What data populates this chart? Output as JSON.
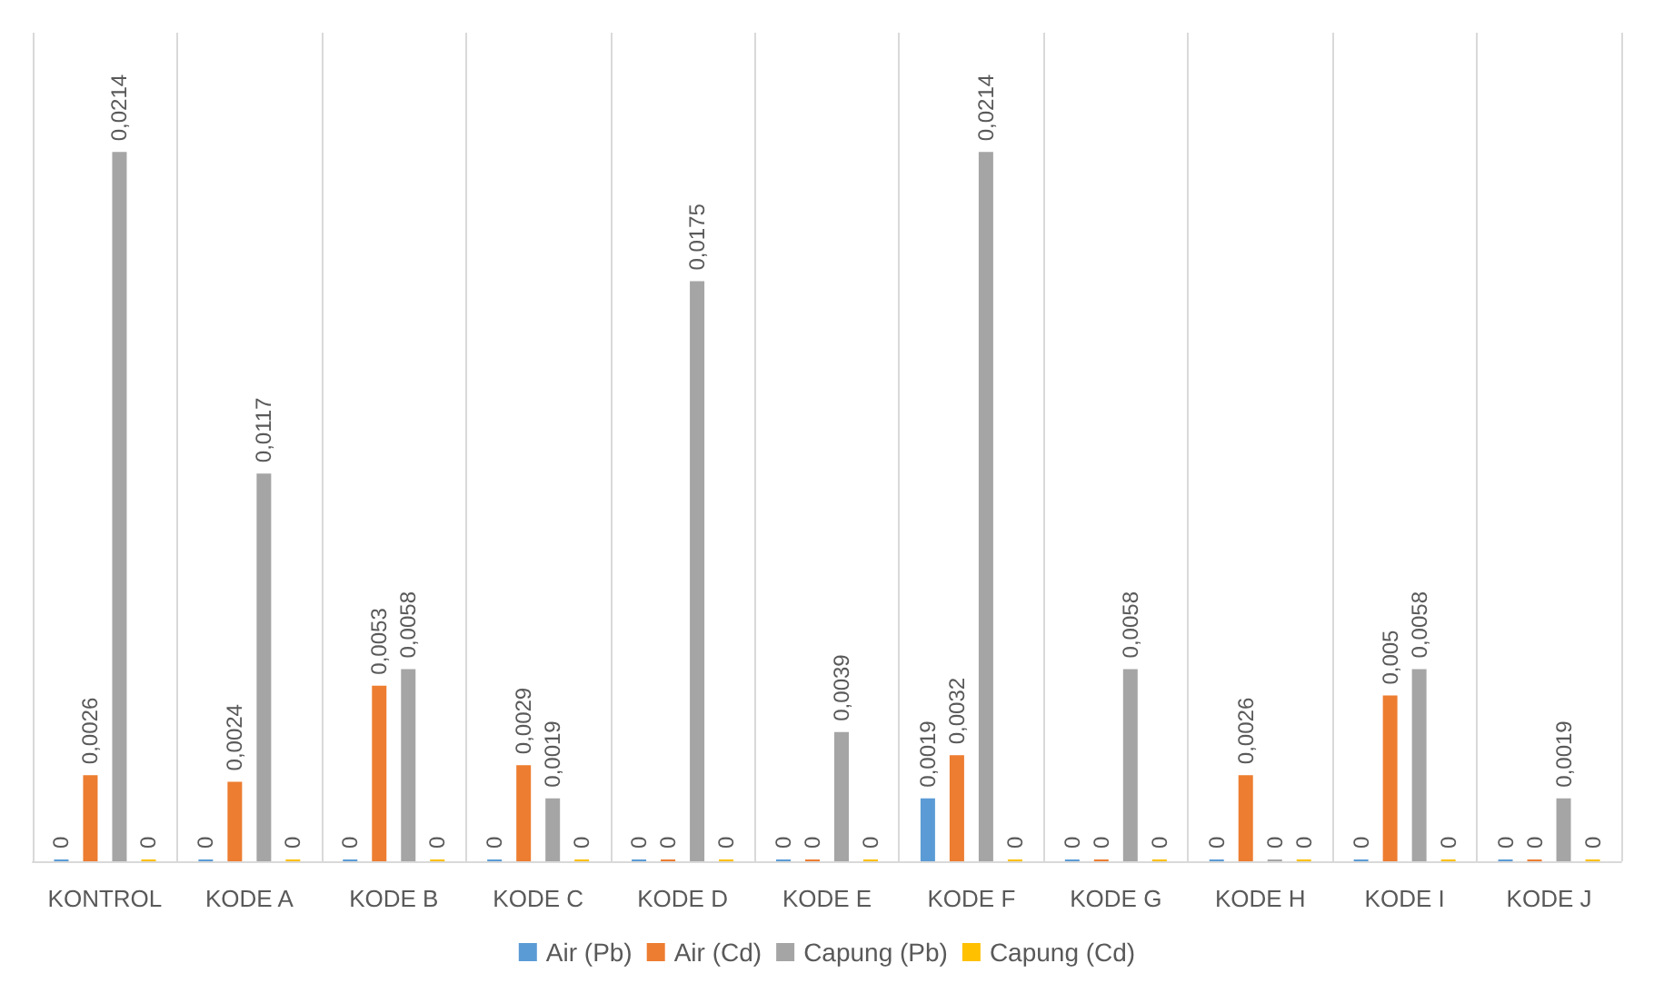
{
  "chart_data": {
    "type": "bar",
    "categories": [
      "KONTROL",
      "KODE A",
      "KODE B",
      "KODE C",
      "KODE D",
      "KODE E",
      "KODE F",
      "KODE G",
      "KODE H",
      "KODE I",
      "KODE J"
    ],
    "series": [
      {
        "name": "Air (Pb)",
        "color": "#5b9bd5",
        "values": [
          0,
          0,
          0,
          0,
          0,
          0,
          0.0019,
          0,
          0,
          0,
          0
        ],
        "value_labels": [
          "0",
          "0",
          "0",
          "0",
          "0",
          "0",
          "0,0019",
          "0",
          "0",
          "0",
          "0"
        ]
      },
      {
        "name": "Air (Cd)",
        "color": "#ed7d31",
        "values": [
          0.0026,
          0.0024,
          0.0053,
          0.0029,
          0,
          0,
          0.0032,
          0,
          0.0026,
          0.005,
          0
        ],
        "value_labels": [
          "0,0026",
          "0,0024",
          "0,0053",
          "0,0029",
          "0",
          "0",
          "0,0032",
          "0",
          "0,0026",
          "0,005",
          "0"
        ]
      },
      {
        "name": "Capung (Pb)",
        "color": "#a5a5a5",
        "values": [
          0.0214,
          0.0117,
          0.0058,
          0.0019,
          0.0175,
          0.0039,
          0.0214,
          0.0058,
          0,
          0.0058,
          0.0019
        ],
        "value_labels": [
          "0,0214",
          "0,0117",
          "0,0058",
          "0,0019",
          "0,0175",
          "0,0039",
          "0,0214",
          "0,0058",
          "0",
          "0,0058",
          "0,0019"
        ]
      },
      {
        "name": "Capung (Cd)",
        "color": "#ffc000",
        "values": [
          0,
          0,
          0,
          0,
          0,
          0,
          0,
          0,
          0,
          0,
          0
        ],
        "value_labels": [
          "0",
          "0",
          "0",
          "0",
          "0",
          "0",
          "0",
          "0",
          "0",
          "0",
          "0"
        ]
      }
    ],
    "grid": "x",
    "legend": "bottom"
  }
}
